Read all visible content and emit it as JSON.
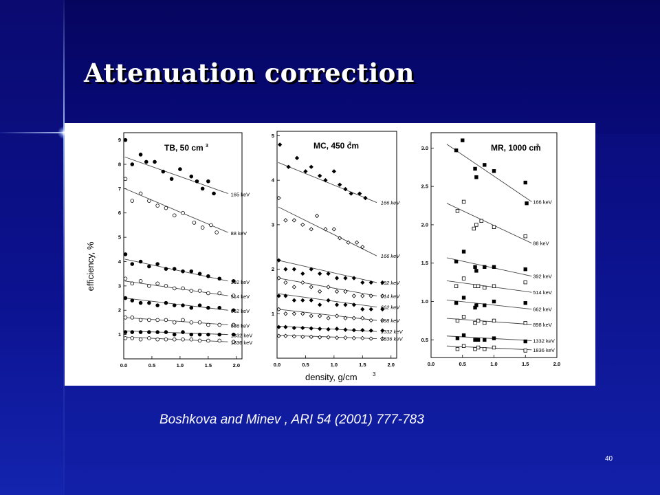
{
  "slide": {
    "title": "Attenuation correction",
    "caption": "Boshkova and Minev , ARI 54 (2001) 777-783",
    "page_number": "40"
  },
  "chart_data": [
    {
      "type": "scatter",
      "title": "TB, 50 cm3",
      "ylabel": "efficiency, %",
      "xlabel": "density, g/cm3",
      "xlim": [
        0,
        2.1
      ],
      "ylim": [
        0,
        9.3
      ],
      "xticks": [
        "0.0",
        "0.5",
        "1.0",
        "1.5",
        "2.0"
      ],
      "yticks": [
        "1",
        "2",
        "3",
        "4",
        "5",
        "6",
        "7",
        "8",
        "9"
      ],
      "series": [
        {
          "name": "165 keV",
          "marker": "filled",
          "x": [
            0.03,
            0.15,
            0.3,
            0.4,
            0.55,
            0.7,
            0.85,
            1.0,
            1.2,
            1.3,
            1.4,
            1.5,
            1.6
          ],
          "y": [
            9.0,
            8.0,
            8.4,
            8.1,
            8.1,
            7.7,
            7.4,
            7.8,
            7.5,
            7.3,
            7.0,
            7.3,
            6.8
          ],
          "fit": [
            8.3,
            6.8
          ]
        },
        {
          "name": "88 keV",
          "marker": "open",
          "x": [
            0.03,
            0.15,
            0.3,
            0.45,
            0.6,
            0.75,
            0.9,
            1.05,
            1.25,
            1.4,
            1.55,
            1.65
          ],
          "y": [
            7.4,
            6.5,
            6.8,
            6.5,
            6.3,
            6.2,
            5.9,
            6.0,
            5.6,
            5.4,
            5.5,
            5.2
          ],
          "fit": [
            7.0,
            5.2
          ]
        },
        {
          "name": "392 keV",
          "marker": "filled",
          "x": [
            0.03,
            0.15,
            0.3,
            0.45,
            0.6,
            0.75,
            0.9,
            1.05,
            1.2,
            1.35,
            1.5,
            1.7,
            1.95
          ],
          "y": [
            4.3,
            3.9,
            4.0,
            3.8,
            3.9,
            3.7,
            3.7,
            3.6,
            3.6,
            3.5,
            3.4,
            3.3,
            3.2
          ],
          "fit": [
            4.1,
            3.2
          ]
        },
        {
          "name": "514 keV",
          "marker": "open",
          "x": [
            0.03,
            0.15,
            0.3,
            0.45,
            0.6,
            0.75,
            0.9,
            1.05,
            1.2,
            1.35,
            1.5,
            1.7,
            1.95
          ],
          "y": [
            3.3,
            3.1,
            3.2,
            3.0,
            3.1,
            3.0,
            2.9,
            2.9,
            2.8,
            2.8,
            2.7,
            2.7,
            2.6
          ],
          "fit": [
            3.2,
            2.6
          ]
        },
        {
          "name": "662 keV",
          "marker": "filled",
          "x": [
            0.03,
            0.15,
            0.3,
            0.45,
            0.6,
            0.75,
            0.9,
            1.05,
            1.2,
            1.35,
            1.5,
            1.7,
            1.95
          ],
          "y": [
            2.5,
            2.4,
            2.3,
            2.3,
            2.2,
            2.3,
            2.2,
            2.2,
            2.1,
            2.2,
            2.1,
            2.1,
            2.0
          ],
          "fit": [
            2.5,
            2.0
          ]
        },
        {
          "name": "898 keV",
          "marker": "open",
          "x": [
            0.03,
            0.15,
            0.3,
            0.45,
            0.6,
            0.75,
            0.9,
            1.05,
            1.2,
            1.35,
            1.5,
            1.7,
            1.95
          ],
          "y": [
            1.7,
            1.7,
            1.6,
            1.6,
            1.6,
            1.6,
            1.5,
            1.6,
            1.5,
            1.5,
            1.4,
            1.4,
            1.4
          ],
          "fit": [
            1.7,
            1.4
          ]
        },
        {
          "name": "1332 keV",
          "marker": "filled",
          "x": [
            0.03,
            0.15,
            0.3,
            0.45,
            0.6,
            0.75,
            0.9,
            1.05,
            1.2,
            1.35,
            1.5,
            1.7,
            1.95
          ],
          "y": [
            1.1,
            1.1,
            1.1,
            1.1,
            1.1,
            1.1,
            1.0,
            1.1,
            1.0,
            1.0,
            1.0,
            1.0,
            1.0
          ],
          "fit": [
            1.15,
            1.0
          ]
        },
        {
          "name": "1836 keV",
          "marker": "open",
          "x": [
            0.03,
            0.15,
            0.3,
            0.45,
            0.6,
            0.75,
            0.9,
            1.05,
            1.2,
            1.35,
            1.5,
            1.7,
            1.95
          ],
          "y": [
            0.85,
            0.85,
            0.8,
            0.85,
            0.8,
            0.8,
            0.8,
            0.8,
            0.8,
            0.75,
            0.75,
            0.75,
            0.7
          ],
          "fit": [
            0.9,
            0.7
          ]
        }
      ]
    },
    {
      "type": "scatter",
      "title": "MC, 450 cm3",
      "xlim": [
        0,
        2.1
      ],
      "ylim": [
        0,
        5.1
      ],
      "xticks": [
        "0.0",
        "0.5",
        "1.0",
        "1.5",
        "2.0"
      ],
      "yticks": [
        "1",
        "2",
        "3",
        "4",
        "5"
      ],
      "series": [
        {
          "name": "166 keV",
          "marker": "filled",
          "x": [
            0.05,
            0.2,
            0.35,
            0.5,
            0.6,
            0.75,
            0.85,
            1.0,
            1.1,
            1.2,
            1.3,
            1.45,
            1.55
          ],
          "y": [
            4.8,
            4.3,
            4.5,
            4.2,
            4.3,
            4.1,
            4.0,
            4.2,
            3.9,
            3.8,
            3.7,
            3.7,
            3.6
          ],
          "fit": [
            4.4,
            3.5
          ]
        },
        {
          "name": "166 keV",
          "marker": "open",
          "x": [
            0.03,
            0.15,
            0.3,
            0.45,
            0.6,
            0.7,
            0.85,
            1.0,
            1.1,
            1.25,
            1.4,
            1.5
          ],
          "y": [
            3.6,
            3.1,
            3.1,
            3.0,
            2.9,
            3.2,
            2.9,
            2.9,
            2.7,
            2.6,
            2.6,
            2.5
          ],
          "fit": [
            3.4,
            2.3
          ]
        },
        {
          "name": "392 keV",
          "marker": "filled",
          "x": [
            0.03,
            0.15,
            0.3,
            0.45,
            0.6,
            0.75,
            0.9,
            1.05,
            1.2,
            1.35,
            1.5,
            1.65,
            1.85
          ],
          "y": [
            2.2,
            2.0,
            2.0,
            1.9,
            2.0,
            1.9,
            1.9,
            1.8,
            1.8,
            1.8,
            1.7,
            1.7,
            1.7
          ],
          "fit": [
            2.2,
            1.7
          ]
        },
        {
          "name": "514 keV",
          "marker": "open",
          "x": [
            0.03,
            0.15,
            0.3,
            0.45,
            0.6,
            0.75,
            0.9,
            1.05,
            1.2,
            1.35,
            1.5,
            1.65,
            1.85
          ],
          "y": [
            1.8,
            1.7,
            1.6,
            1.7,
            1.6,
            1.5,
            1.6,
            1.5,
            1.5,
            1.4,
            1.4,
            1.4,
            1.4
          ],
          "fit": [
            1.8,
            1.4
          ]
        },
        {
          "name": "662 keV",
          "marker": "filled",
          "x": [
            0.03,
            0.15,
            0.3,
            0.45,
            0.6,
            0.75,
            0.9,
            1.05,
            1.2,
            1.35,
            1.5,
            1.65,
            1.85
          ],
          "y": [
            1.4,
            1.4,
            1.3,
            1.3,
            1.3,
            1.2,
            1.3,
            1.2,
            1.2,
            1.2,
            1.1,
            1.1,
            1.1
          ],
          "fit": [
            1.45,
            1.15
          ]
        },
        {
          "name": "898 keV",
          "marker": "open",
          "x": [
            0.03,
            0.15,
            0.3,
            0.45,
            0.6,
            0.75,
            0.9,
            1.05,
            1.2,
            1.35,
            1.5,
            1.65,
            1.85
          ],
          "y": [
            1.1,
            1.0,
            1.0,
            1.0,
            0.95,
            0.95,
            0.9,
            0.95,
            0.9,
            0.9,
            0.9,
            0.85,
            0.85
          ],
          "fit": [
            1.1,
            0.85
          ]
        },
        {
          "name": "1332 keV",
          "marker": "filled",
          "x": [
            0.03,
            0.15,
            0.3,
            0.45,
            0.6,
            0.75,
            0.9,
            1.05,
            1.2,
            1.35,
            1.5,
            1.65,
            1.85
          ],
          "y": [
            0.7,
            0.7,
            0.68,
            0.68,
            0.67,
            0.66,
            0.65,
            0.66,
            0.64,
            0.63,
            0.63,
            0.62,
            0.62
          ],
          "fit": [
            0.72,
            0.6
          ]
        },
        {
          "name": "1836 keV",
          "marker": "open",
          "x": [
            0.03,
            0.15,
            0.3,
            0.45,
            0.6,
            0.75,
            0.9,
            1.05,
            1.2,
            1.35,
            1.5,
            1.65,
            1.85
          ],
          "y": [
            0.5,
            0.5,
            0.49,
            0.48,
            0.48,
            0.47,
            0.47,
            0.46,
            0.46,
            0.45,
            0.45,
            0.44,
            0.44
          ],
          "fit": [
            0.52,
            0.44
          ]
        }
      ]
    },
    {
      "type": "scatter",
      "title": "MR, 1000 cm3",
      "xlim": [
        0,
        2.0
      ],
      "ylim": [
        0.27,
        3.2
      ],
      "xticks": [
        "0.0",
        "0.5",
        "1.0",
        "1.5",
        "2.0"
      ],
      "yticks": [
        "0.5",
        "1.0",
        "1.5",
        "2.0",
        "2.5",
        "3.0"
      ],
      "series": [
        {
          "name": "166 keV",
          "marker": "filled",
          "x": [
            0.4,
            0.5,
            0.7,
            0.72,
            0.85,
            1.0,
            1.5,
            1.52
          ],
          "y": [
            2.97,
            3.1,
            2.73,
            2.62,
            2.78,
            2.7,
            2.55,
            2.28
          ],
          "fit": [
            3.05,
            2.3
          ]
        },
        {
          "name": "88 keV",
          "marker": "open",
          "x": [
            0.42,
            0.52,
            0.68,
            0.72,
            0.8,
            1.0,
            1.5
          ],
          "y": [
            2.18,
            2.3,
            1.95,
            2.0,
            2.05,
            1.97,
            1.85
          ],
          "fit": [
            2.28,
            1.76
          ]
        },
        {
          "name": "392 keV",
          "marker": "filled",
          "x": [
            0.4,
            0.52,
            0.7,
            0.72,
            0.85,
            1.0,
            1.5
          ],
          "y": [
            1.52,
            1.65,
            1.45,
            1.4,
            1.45,
            1.45,
            1.42
          ],
          "fit": [
            1.57,
            1.33
          ]
        },
        {
          "name": "514 keV",
          "marker": "open",
          "x": [
            0.4,
            0.52,
            0.7,
            0.75,
            0.85,
            1.0,
            1.5
          ],
          "y": [
            1.2,
            1.3,
            1.2,
            1.2,
            1.18,
            1.2,
            1.25
          ],
          "fit": [
            1.27,
            1.12
          ]
        },
        {
          "name": "662 keV",
          "marker": "filled",
          "x": [
            0.4,
            0.52,
            0.7,
            0.72,
            0.85,
            1.0,
            1.5
          ],
          "y": [
            0.98,
            1.05,
            0.92,
            0.95,
            0.95,
            1.0,
            0.98
          ],
          "fit": [
            1.02,
            0.9
          ]
        },
        {
          "name": "898 keV",
          "marker": "open",
          "x": [
            0.42,
            0.52,
            0.7,
            0.75,
            0.85,
            1.0,
            1.5
          ],
          "y": [
            0.75,
            0.8,
            0.72,
            0.75,
            0.72,
            0.75,
            0.72
          ],
          "fit": [
            0.78,
            0.7
          ]
        },
        {
          "name": "1332 keV",
          "marker": "filled",
          "x": [
            0.42,
            0.52,
            0.7,
            0.75,
            0.85,
            1.0,
            1.5
          ],
          "y": [
            0.52,
            0.56,
            0.5,
            0.5,
            0.5,
            0.52,
            0.48
          ],
          "fit": [
            0.55,
            0.49
          ]
        },
        {
          "name": "1836 keV",
          "marker": "open",
          "x": [
            0.42,
            0.52,
            0.7,
            0.75,
            0.85,
            1.0,
            1.5
          ],
          "y": [
            0.38,
            0.42,
            0.38,
            0.4,
            0.38,
            0.4,
            0.36
          ],
          "fit": [
            0.42,
            0.37
          ]
        }
      ]
    }
  ]
}
